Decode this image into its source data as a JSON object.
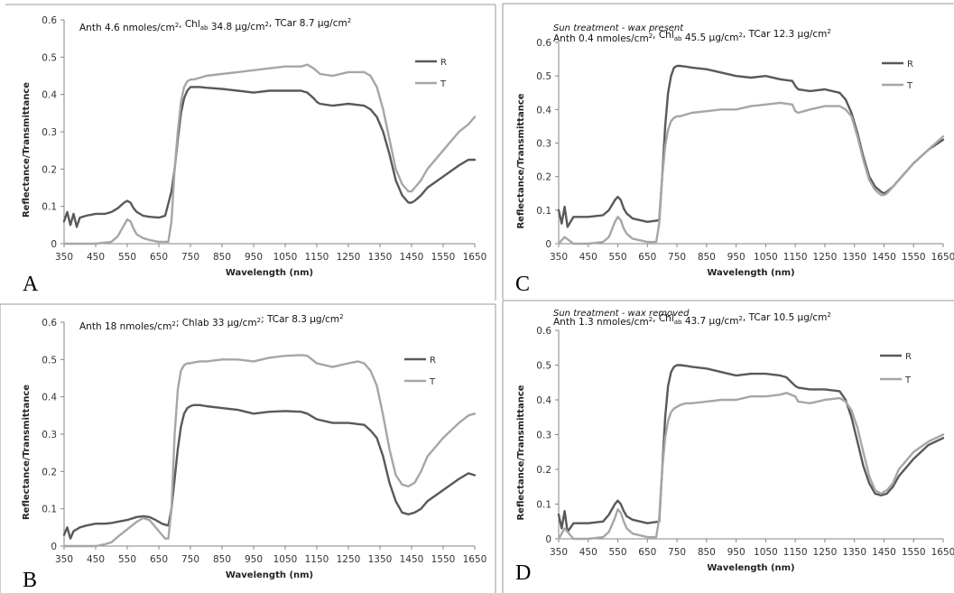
{
  "colors": {
    "R": "#595959",
    "T": "#a6a6a6",
    "axis": "#868686",
    "frame": "#9a9a9a"
  },
  "chart_data": [
    {
      "panel": "A",
      "type": "line",
      "subtitle": "",
      "annotation": "Anth 4.6 nmoles/cm², Chlₐᵦ  34.8 µg/cm², TCar 8.7 µg/cm²",
      "annotation_parts": [
        "Anth 4.6 nmoles/cm",
        "2",
        ", Chl",
        "ab",
        "  34.8 µg/cm",
        "2",
        ", TCar 8.7 µg/cm",
        "2"
      ],
      "xlabel": "Wavelength (nm)",
      "ylabel": "Reflectance/Transmittance",
      "xlim": [
        350,
        1650
      ],
      "ylim": [
        0,
        0.6
      ],
      "x_ticks": [
        "350",
        "450",
        "550",
        "650",
        "750",
        "850",
        "950",
        "1050",
        "1150",
        "1250",
        "1350",
        "1450",
        "1550",
        "1650"
      ],
      "y_ticks": [
        "0",
        "0.1",
        "0.2",
        "0.3",
        "0.4",
        "0.5",
        "0.6"
      ],
      "legend": "right",
      "series": [
        {
          "name": "R",
          "color": "#595959",
          "x": [
            350,
            360,
            370,
            380,
            390,
            400,
            420,
            450,
            480,
            500,
            520,
            540,
            550,
            560,
            570,
            580,
            600,
            620,
            650,
            670,
            690,
            700,
            710,
            720,
            730,
            740,
            750,
            760,
            780,
            800,
            850,
            900,
            950,
            1000,
            1050,
            1100,
            1120,
            1140,
            1150,
            1160,
            1200,
            1250,
            1300,
            1320,
            1340,
            1360,
            1380,
            1400,
            1420,
            1440,
            1450,
            1460,
            1480,
            1500,
            1550,
            1600,
            1630,
            1650
          ],
          "y": [
            0.06,
            0.085,
            0.05,
            0.08,
            0.045,
            0.07,
            0.075,
            0.08,
            0.08,
            0.085,
            0.095,
            0.11,
            0.115,
            0.11,
            0.095,
            0.085,
            0.075,
            0.072,
            0.07,
            0.075,
            0.14,
            0.2,
            0.28,
            0.35,
            0.39,
            0.41,
            0.42,
            0.42,
            0.42,
            0.418,
            0.415,
            0.41,
            0.405,
            0.41,
            0.41,
            0.41,
            0.405,
            0.39,
            0.38,
            0.375,
            0.37,
            0.375,
            0.37,
            0.36,
            0.34,
            0.3,
            0.24,
            0.17,
            0.13,
            0.11,
            0.11,
            0.115,
            0.13,
            0.15,
            0.18,
            0.21,
            0.225,
            0.225
          ]
        },
        {
          "name": "T",
          "color": "#a6a6a6",
          "x": [
            350,
            400,
            450,
            500,
            520,
            540,
            550,
            560,
            570,
            580,
            600,
            620,
            650,
            680,
            690,
            700,
            710,
            720,
            730,
            740,
            750,
            760,
            780,
            800,
            850,
            900,
            950,
            1000,
            1050,
            1100,
            1120,
            1140,
            1160,
            1200,
            1250,
            1300,
            1320,
            1340,
            1360,
            1380,
            1400,
            1420,
            1440,
            1450,
            1460,
            1480,
            1500,
            1550,
            1600,
            1630,
            1650
          ],
          "y": [
            0,
            0,
            0,
            0.005,
            0.02,
            0.05,
            0.065,
            0.06,
            0.04,
            0.025,
            0.015,
            0.01,
            0.005,
            0.005,
            0.06,
            0.2,
            0.3,
            0.38,
            0.42,
            0.435,
            0.44,
            0.44,
            0.445,
            0.45,
            0.455,
            0.46,
            0.465,
            0.47,
            0.475,
            0.475,
            0.48,
            0.47,
            0.455,
            0.45,
            0.46,
            0.46,
            0.45,
            0.42,
            0.36,
            0.28,
            0.2,
            0.16,
            0.14,
            0.14,
            0.15,
            0.17,
            0.2,
            0.25,
            0.3,
            0.32,
            0.34
          ]
        }
      ]
    },
    {
      "panel": "B",
      "type": "line",
      "subtitle": "",
      "annotation": "Anth 18 nmoles/cm²;  Chlab  33 µg/cm²;  TCar 8.3 µg/cm²",
      "annotation_parts": [
        "Anth 18 nmoles/cm",
        "2",
        ";  Chlab  33 µg/cm",
        "2",
        ";  TCar 8.3 µg/cm",
        "2"
      ],
      "xlabel": "Wavelength (nm)",
      "ylabel": "Reflectance/Transmittance",
      "xlim": [
        350,
        1650
      ],
      "ylim": [
        0,
        0.6
      ],
      "x_ticks": [
        "350",
        "450",
        "550",
        "650",
        "750",
        "850",
        "950",
        "1050",
        "1150",
        "1250",
        "1350",
        "1450",
        "1550",
        "1650"
      ],
      "y_ticks": [
        "0",
        "0.1",
        "0.2",
        "0.3",
        "0.4",
        "0.5",
        "0.6"
      ],
      "legend": "right",
      "series": [
        {
          "name": "R",
          "color": "#595959",
          "x": [
            350,
            360,
            370,
            380,
            400,
            420,
            450,
            480,
            500,
            520,
            550,
            580,
            600,
            620,
            640,
            660,
            680,
            690,
            700,
            710,
            720,
            730,
            740,
            750,
            760,
            780,
            800,
            850,
            900,
            950,
            1000,
            1050,
            1100,
            1120,
            1150,
            1200,
            1250,
            1300,
            1320,
            1340,
            1360,
            1380,
            1400,
            1420,
            1440,
            1460,
            1480,
            1500,
            1550,
            1600,
            1630,
            1650
          ],
          "y": [
            0.03,
            0.05,
            0.02,
            0.04,
            0.05,
            0.055,
            0.06,
            0.06,
            0.062,
            0.065,
            0.07,
            0.078,
            0.08,
            0.078,
            0.07,
            0.06,
            0.055,
            0.1,
            0.18,
            0.26,
            0.32,
            0.355,
            0.37,
            0.375,
            0.378,
            0.378,
            0.375,
            0.37,
            0.365,
            0.355,
            0.36,
            0.362,
            0.36,
            0.355,
            0.34,
            0.33,
            0.33,
            0.325,
            0.31,
            0.29,
            0.24,
            0.17,
            0.12,
            0.09,
            0.085,
            0.09,
            0.1,
            0.12,
            0.15,
            0.18,
            0.195,
            0.19
          ]
        },
        {
          "name": "T",
          "color": "#a6a6a6",
          "x": [
            350,
            400,
            450,
            480,
            500,
            520,
            550,
            580,
            600,
            620,
            640,
            660,
            670,
            680,
            690,
            700,
            710,
            720,
            730,
            740,
            750,
            760,
            780,
            800,
            850,
            900,
            950,
            1000,
            1050,
            1100,
            1120,
            1150,
            1200,
            1250,
            1280,
            1300,
            1320,
            1340,
            1360,
            1380,
            1400,
            1420,
            1440,
            1460,
            1480,
            1500,
            1550,
            1600,
            1630,
            1650
          ],
          "y": [
            0,
            0,
            0,
            0.005,
            0.01,
            0.025,
            0.045,
            0.065,
            0.075,
            0.07,
            0.05,
            0.03,
            0.02,
            0.02,
            0.1,
            0.3,
            0.42,
            0.47,
            0.485,
            0.49,
            0.49,
            0.492,
            0.495,
            0.495,
            0.5,
            0.5,
            0.495,
            0.505,
            0.51,
            0.512,
            0.51,
            0.49,
            0.48,
            0.49,
            0.495,
            0.49,
            0.47,
            0.43,
            0.35,
            0.26,
            0.19,
            0.165,
            0.16,
            0.17,
            0.2,
            0.24,
            0.29,
            0.33,
            0.35,
            0.355
          ]
        }
      ]
    },
    {
      "panel": "C",
      "type": "line",
      "subtitle": "Sun treatment - wax present",
      "annotation": "Anth 0.4 nmoles/cm², Chlₐᵦ  45.5 µg/cm², TCar 12.3 µg/cm²",
      "annotation_parts": [
        "Anth 0.4 nmoles/cm",
        "2",
        ", Chl",
        "ab",
        "  45.5 µg/cm",
        "2",
        ", TCar 12.3 µg/cm",
        "2"
      ],
      "xlabel": "Wavelength (nm)",
      "ylabel": "Reflectance/Transmittance",
      "xlim": [
        350,
        1650
      ],
      "ylim": [
        0,
        0.6
      ],
      "x_ticks": [
        "350",
        "450",
        "550",
        "650",
        "750",
        "850",
        "950",
        "1050",
        "1150",
        "1250",
        "1350",
        "1450",
        "1550",
        "1650"
      ],
      "y_ticks": [
        "0",
        "0.1",
        "0.2",
        "0.3",
        "0.4",
        "0.5",
        "0.6"
      ],
      "legend": "right",
      "series": [
        {
          "name": "R",
          "color": "#595959",
          "x": [
            350,
            360,
            370,
            380,
            400,
            450,
            500,
            520,
            540,
            550,
            560,
            570,
            580,
            600,
            650,
            690,
            700,
            710,
            720,
            730,
            740,
            750,
            760,
            780,
            800,
            850,
            900,
            950,
            1000,
            1050,
            1100,
            1140,
            1150,
            1160,
            1200,
            1250,
            1300,
            1320,
            1340,
            1360,
            1380,
            1400,
            1420,
            1440,
            1450,
            1460,
            1480,
            1500,
            1550,
            1600,
            1650
          ],
          "y": [
            0.1,
            0.06,
            0.11,
            0.05,
            0.08,
            0.08,
            0.085,
            0.1,
            0.13,
            0.14,
            0.13,
            0.105,
            0.09,
            0.075,
            0.065,
            0.07,
            0.2,
            0.35,
            0.45,
            0.5,
            0.525,
            0.53,
            0.53,
            0.528,
            0.525,
            0.52,
            0.51,
            0.5,
            0.495,
            0.5,
            0.49,
            0.485,
            0.47,
            0.46,
            0.455,
            0.46,
            0.45,
            0.43,
            0.39,
            0.33,
            0.26,
            0.2,
            0.17,
            0.155,
            0.15,
            0.155,
            0.17,
            0.19,
            0.24,
            0.28,
            0.31
          ]
        },
        {
          "name": "T",
          "color": "#a6a6a6",
          "x": [
            350,
            370,
            400,
            450,
            500,
            520,
            540,
            550,
            560,
            570,
            580,
            600,
            650,
            680,
            690,
            700,
            710,
            720,
            730,
            740,
            750,
            760,
            780,
            800,
            850,
            900,
            950,
            1000,
            1050,
            1100,
            1140,
            1150,
            1160,
            1200,
            1250,
            1300,
            1320,
            1340,
            1360,
            1380,
            1400,
            1420,
            1440,
            1450,
            1460,
            1480,
            1500,
            1550,
            1600,
            1650
          ],
          "y": [
            0,
            0.02,
            0,
            0,
            0.005,
            0.02,
            0.065,
            0.08,
            0.07,
            0.045,
            0.03,
            0.015,
            0.005,
            0.005,
            0.06,
            0.2,
            0.29,
            0.34,
            0.365,
            0.375,
            0.38,
            0.38,
            0.385,
            0.39,
            0.395,
            0.4,
            0.4,
            0.41,
            0.415,
            0.42,
            0.415,
            0.395,
            0.39,
            0.4,
            0.41,
            0.41,
            0.4,
            0.38,
            0.32,
            0.25,
            0.19,
            0.16,
            0.145,
            0.145,
            0.15,
            0.17,
            0.19,
            0.24,
            0.28,
            0.32
          ]
        }
      ]
    },
    {
      "panel": "D",
      "type": "line",
      "subtitle": "Sun treatment - wax removed",
      "annotation": "Anth 1.3 nmoles/cm², Chlₐᵦ  43.7 µg/cm², TCar 10.5 µg/cm²",
      "annotation_parts": [
        "Anth 1.3 nmoles/cm",
        "2",
        ", Chl",
        "ab",
        "  43.7 µg/cm",
        "2",
        ", TCar 10.5 µg/cm",
        "2"
      ],
      "xlabel": "Wavelength (nm)",
      "ylabel": "Reflectance/Transmittance",
      "xlim": [
        350,
        1650
      ],
      "ylim": [
        0,
        0.6
      ],
      "x_ticks": [
        "350",
        "450",
        "550",
        "650",
        "750",
        "850",
        "950",
        "1050",
        "1150",
        "1250",
        "1350",
        "1450",
        "1550",
        "1650"
      ],
      "y_ticks": [
        "0",
        "0.1",
        "0.2",
        "0.3",
        "0.4",
        "0.5",
        "0.6"
      ],
      "legend": "right",
      "series": [
        {
          "name": "R",
          "color": "#595959",
          "x": [
            350,
            360,
            370,
            380,
            400,
            450,
            500,
            520,
            540,
            550,
            560,
            570,
            580,
            600,
            650,
            690,
            700,
            710,
            720,
            730,
            740,
            750,
            760,
            780,
            800,
            850,
            900,
            950,
            1000,
            1050,
            1100,
            1120,
            1150,
            1160,
            1200,
            1250,
            1300,
            1320,
            1340,
            1360,
            1380,
            1400,
            1420,
            1440,
            1460,
            1480,
            1500,
            1550,
            1600,
            1650
          ],
          "y": [
            0.07,
            0.03,
            0.08,
            0.02,
            0.045,
            0.045,
            0.05,
            0.07,
            0.1,
            0.11,
            0.1,
            0.08,
            0.065,
            0.055,
            0.045,
            0.05,
            0.2,
            0.35,
            0.44,
            0.48,
            0.495,
            0.5,
            0.5,
            0.498,
            0.495,
            0.49,
            0.48,
            0.47,
            0.475,
            0.475,
            0.47,
            0.465,
            0.44,
            0.435,
            0.43,
            0.43,
            0.425,
            0.4,
            0.35,
            0.28,
            0.21,
            0.16,
            0.13,
            0.125,
            0.13,
            0.15,
            0.18,
            0.23,
            0.27,
            0.29
          ]
        },
        {
          "name": "T",
          "color": "#a6a6a6",
          "x": [
            350,
            370,
            400,
            450,
            500,
            520,
            540,
            550,
            560,
            570,
            580,
            600,
            650,
            680,
            690,
            700,
            710,
            720,
            730,
            740,
            750,
            760,
            780,
            800,
            850,
            900,
            950,
            1000,
            1050,
            1100,
            1120,
            1150,
            1160,
            1200,
            1250,
            1300,
            1320,
            1340,
            1360,
            1380,
            1400,
            1420,
            1440,
            1460,
            1480,
            1500,
            1550,
            1600,
            1650
          ],
          "y": [
            0,
            0.03,
            0,
            0,
            0.005,
            0.02,
            0.06,
            0.085,
            0.075,
            0.05,
            0.03,
            0.015,
            0.005,
            0.005,
            0.06,
            0.2,
            0.29,
            0.34,
            0.365,
            0.375,
            0.38,
            0.385,
            0.39,
            0.39,
            0.395,
            0.4,
            0.4,
            0.41,
            0.41,
            0.415,
            0.42,
            0.41,
            0.395,
            0.39,
            0.4,
            0.405,
            0.395,
            0.37,
            0.32,
            0.25,
            0.18,
            0.14,
            0.13,
            0.14,
            0.16,
            0.2,
            0.25,
            0.28,
            0.3
          ]
        }
      ]
    }
  ]
}
